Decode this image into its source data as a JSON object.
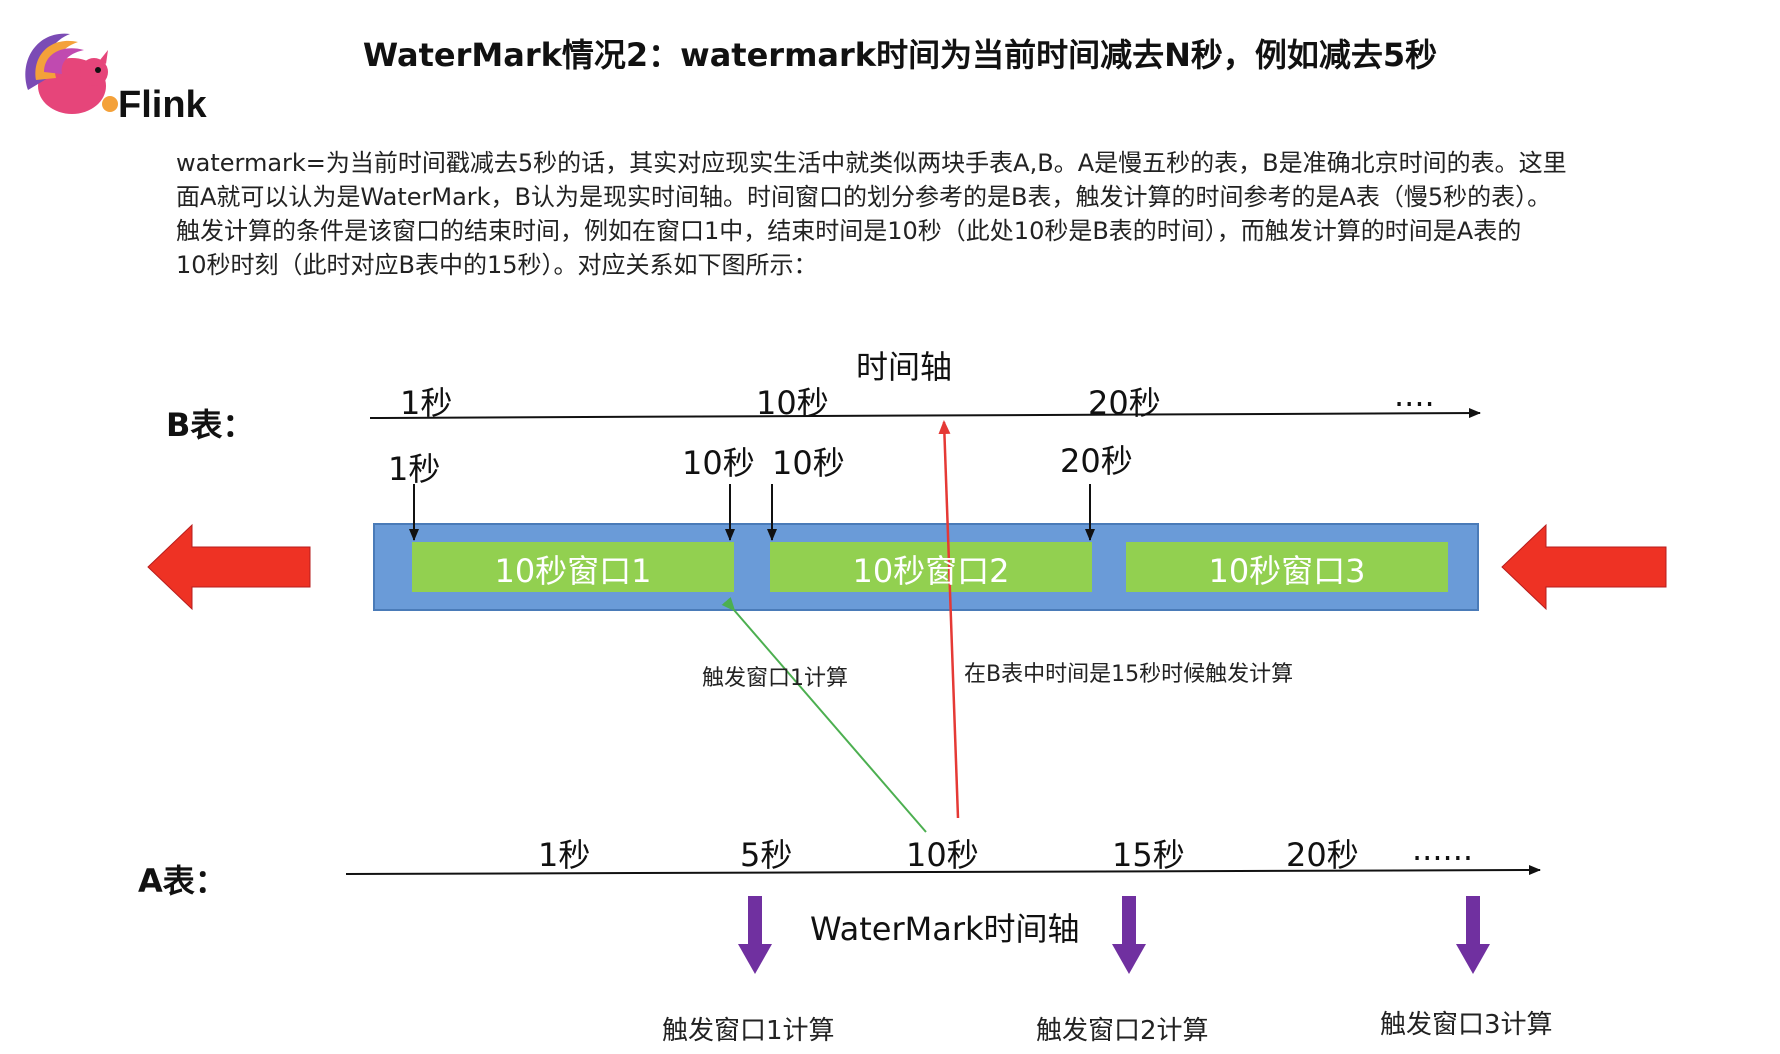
{
  "logo": {
    "text": "Flink",
    "icon": "flink-squirrel-icon"
  },
  "title": "WaterMark情况2：watermark时间为当前时间减去N秒，例如减去5秒",
  "paragraph": {
    "line1": "watermark=为当前时间戳减去5秒的话，其实对应现实生活中就类似两块手表A,B。A是慢五秒的表，B是准确北京时间的表。这里",
    "line2": "面A就可以认为是WaterMark，B认为是现实时间轴。时间窗口的划分参考的是B表，触发计算的时间参考的是A表（慢5秒的表）。",
    "line3": "触发计算的条件是该窗口的结束时间，例如在窗口1中，结束时间是10秒（此处10秒是B表的时间），而触发计算的时间是A表的",
    "line4": "10秒时刻（此时对应B表中的15秒）。对应关系如下图所示："
  },
  "b_table": {
    "label": "B表：",
    "axis_title": "时间轴",
    "ticks": [
      "1秒",
      "10秒",
      "20秒",
      "...."
    ],
    "boundary_labels": [
      "1秒",
      "10秒",
      "10秒",
      "20秒"
    ],
    "windows": [
      "10秒窗口1",
      "10秒窗口2",
      "10秒窗口3"
    ]
  },
  "annotations": {
    "green": "触发窗口1计算",
    "red": "在B表中时间是15秒时候触发计算"
  },
  "a_table": {
    "label": "A表：",
    "axis_title": "WaterMark时间轴",
    "ticks": [
      "1秒",
      "5秒",
      "10秒",
      "15秒",
      "20秒",
      "......"
    ],
    "triggers": [
      "触发窗口1计算",
      "触发窗口2计算",
      "触发窗口3计算"
    ]
  },
  "colors": {
    "stream_bar": "#6a9bd8",
    "window_fill": "#92d050",
    "big_arrow": "#ee3224",
    "trigger_arrow": "#7030a0",
    "green_line": "#4caf50",
    "red_line": "#e53935"
  }
}
